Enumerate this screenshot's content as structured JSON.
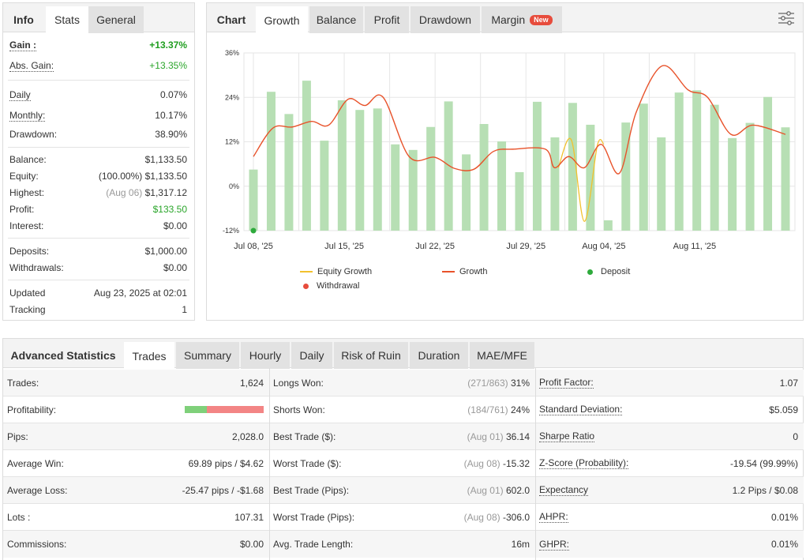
{
  "left_panel": {
    "tabs": [
      "Info",
      "Stats",
      "General"
    ],
    "rows": {
      "gain": {
        "label": "Gain :",
        "value": "+13.37%"
      },
      "abs_gain": {
        "label": "Abs. Gain:",
        "value": "+13.35%"
      },
      "daily": {
        "label": "Daily",
        "value": "0.07%"
      },
      "monthly": {
        "label": "Monthly:",
        "value": "10.17%"
      },
      "drawdown": {
        "label": "Drawdown:",
        "value": "38.90%"
      },
      "balance": {
        "label": "Balance:",
        "value": "$1,133.50"
      },
      "equity": {
        "label": "Equity:",
        "prefix": "(100.00%)",
        "value": "$1,133.50"
      },
      "highest": {
        "label": "Highest:",
        "prefix": "(Aug 06)",
        "value": "$1,317.12"
      },
      "profit": {
        "label": "Profit:",
        "value": "$133.50"
      },
      "interest": {
        "label": "Interest:",
        "value": "$0.00"
      },
      "deposits": {
        "label": "Deposits:",
        "value": "$1,000.00"
      },
      "withdrawals": {
        "label": "Withdrawals:",
        "value": "$0.00"
      },
      "updated": {
        "label": "Updated",
        "value": "Aug 23, 2025 at 02:01"
      },
      "tracking": {
        "label": "Tracking",
        "value": "1"
      }
    }
  },
  "chart_panel": {
    "tabs": [
      "Chart",
      "Growth",
      "Balance",
      "Profit",
      "Drawdown",
      "Margin"
    ],
    "margin_badge": "New",
    "legend": {
      "equity_growth": "Equity Growth",
      "growth": "Growth",
      "deposit": "Deposit",
      "withdrawal": "Withdrawal"
    },
    "colors": {
      "bars": "#b7dfb4",
      "growth": "#e8522a",
      "equity": "#f2c12e",
      "deposit": "#2eaa3c",
      "withdrawal": "#e74c3c",
      "grid": "#e6e6e6"
    }
  },
  "chart_data": {
    "type": "bar+line",
    "y_ticks": [
      "36%",
      "24%",
      "12%",
      "0%",
      "-12%"
    ],
    "ylim": [
      -12,
      36
    ],
    "x_ticks": [
      {
        "day": 0,
        "label": "Jul 08, '25"
      },
      {
        "day": 7,
        "label": "Jul 15, '25"
      },
      {
        "day": 14,
        "label": "Jul 22, '25"
      },
      {
        "day": 21,
        "label": "Jul 29, '25"
      },
      {
        "day": 27,
        "label": "Aug 04, '25"
      },
      {
        "day": 34,
        "label": "Aug 11, '25"
      }
    ],
    "x_range": [
      0,
      41
    ],
    "bars": [
      {
        "day": 0,
        "value": 4.5
      },
      {
        "day": 1,
        "value": 25.5
      },
      {
        "day": 2,
        "value": 19.5
      },
      {
        "day": 3,
        "value": 28.5
      },
      {
        "day": 4,
        "value": 12.3
      },
      {
        "day": 5,
        "value": 23.2
      },
      {
        "day": 6,
        "value": 20.6
      },
      {
        "day": 7,
        "value": 21.0
      },
      {
        "day": 8,
        "value": 11.3
      },
      {
        "day": 9,
        "value": 9.8
      },
      {
        "day": 10,
        "value": 16.0
      },
      {
        "day": 11,
        "value": 22.9
      },
      {
        "day": 12,
        "value": 8.6
      },
      {
        "day": 13,
        "value": 16.8
      },
      {
        "day": 14,
        "value": 12.1
      },
      {
        "day": 15,
        "value": 3.8
      },
      {
        "day": 16,
        "value": 22.8
      },
      {
        "day": 17,
        "value": 13.2
      },
      {
        "day": 18,
        "value": 22.5
      },
      {
        "day": 19,
        "value": 16.6
      },
      {
        "day": 20,
        "value": -9.2
      },
      {
        "day": 21,
        "value": 17.2
      },
      {
        "day": 22,
        "value": 22.3
      },
      {
        "day": 23,
        "value": 13.2
      },
      {
        "day": 24,
        "value": 25.3
      },
      {
        "day": 25,
        "value": 25.9
      },
      {
        "day": 26,
        "value": 22.0
      },
      {
        "day": 27,
        "value": 13.0
      },
      {
        "day": 28,
        "value": 17.1
      },
      {
        "day": 29,
        "value": 24.1
      },
      {
        "day": 30,
        "value": 15.9
      }
    ],
    "growth": [
      {
        "x": 0,
        "y": 8
      },
      {
        "x": 1.5,
        "y": 15.7
      },
      {
        "x": 3,
        "y": 16
      },
      {
        "x": 4.5,
        "y": 17.5
      },
      {
        "x": 5.8,
        "y": 16.5
      },
      {
        "x": 7.3,
        "y": 23.5
      },
      {
        "x": 8.6,
        "y": 21.8
      },
      {
        "x": 10,
        "y": 24
      },
      {
        "x": 12,
        "y": 8
      },
      {
        "x": 14,
        "y": 7.8
      },
      {
        "x": 15.5,
        "y": 4.8
      },
      {
        "x": 17,
        "y": 4.6
      },
      {
        "x": 18.5,
        "y": 9.4
      },
      {
        "x": 20,
        "y": 10
      },
      {
        "x": 22.5,
        "y": 10
      },
      {
        "x": 23.2,
        "y": 5
      },
      {
        "x": 24.3,
        "y": 8
      },
      {
        "x": 25.5,
        "y": 5
      },
      {
        "x": 26.8,
        "y": 11.3
      },
      {
        "x": 28.2,
        "y": 3.5
      },
      {
        "x": 29.5,
        "y": 20
      },
      {
        "x": 31.5,
        "y": 32.5
      },
      {
        "x": 33.5,
        "y": 26
      },
      {
        "x": 35,
        "y": 24
      },
      {
        "x": 36.8,
        "y": 14
      },
      {
        "x": 38.5,
        "y": 16.5
      },
      {
        "x": 41,
        "y": 14
      }
    ],
    "equity_growth": [
      {
        "x": 23.5,
        "y": 5
      },
      {
        "x": 24.5,
        "y": 12.5
      },
      {
        "x": 25.5,
        "y": -9.5
      },
      {
        "x": 26.5,
        "y": 11
      },
      {
        "x": 27,
        "y": 11.3
      }
    ],
    "deposits": [
      {
        "x": 0,
        "y": -12
      }
    ],
    "withdrawals": []
  },
  "advanced": {
    "title": "Advanced Statistics",
    "tabs": [
      "Trades",
      "Summary",
      "Hourly",
      "Daily",
      "Risk of Ruin",
      "Duration",
      "MAE/MFE"
    ],
    "col1": [
      {
        "label": "Trades:",
        "value": "1,624"
      },
      {
        "label": "Profitability:",
        "value": ""
      },
      {
        "label": "Pips:",
        "value": "2,028.0"
      },
      {
        "label": "Average Win:",
        "value": "69.89 pips / $4.62"
      },
      {
        "label": "Average Loss:",
        "value": "-25.47 pips / -$1.68"
      },
      {
        "label": "Lots :",
        "value": "107.31"
      },
      {
        "label": "Commissions:",
        "value": "$0.00"
      }
    ],
    "col2": [
      {
        "label": "Longs Won:",
        "prefix": "(271/863)",
        "value": "31%"
      },
      {
        "label": "Shorts Won:",
        "prefix": "(184/761)",
        "value": "24%"
      },
      {
        "label": "Best Trade ($):",
        "prefix": "(Aug 01)",
        "value": "36.14"
      },
      {
        "label": "Worst Trade ($):",
        "prefix": "(Aug 08)",
        "value": "-15.32"
      },
      {
        "label": "Best Trade (Pips):",
        "prefix": "(Aug 01)",
        "value": "602.0"
      },
      {
        "label": "Worst Trade (Pips):",
        "prefix": "(Aug 08)",
        "value": "-306.0"
      },
      {
        "label": "Avg. Trade Length:",
        "prefix": "",
        "value": "16m"
      }
    ],
    "col3": [
      {
        "label": "Profit Factor:",
        "value": "1.07"
      },
      {
        "label": "Standard Deviation:",
        "value": "$5.059"
      },
      {
        "label": "Sharpe Ratio",
        "value": "0"
      },
      {
        "label": "Z-Score (Probability):",
        "value": "-19.54 (99.99%)"
      },
      {
        "label": "Expectancy",
        "value": "1.2 Pips / $0.08"
      },
      {
        "label": "AHPR:",
        "value": "0.01%"
      },
      {
        "label": "GHPR:",
        "value": "0.01%"
      }
    ],
    "profitability": {
      "win_fraction": 0.28,
      "win_color": "#7fd07a",
      "loss_color": "#f38585"
    }
  }
}
